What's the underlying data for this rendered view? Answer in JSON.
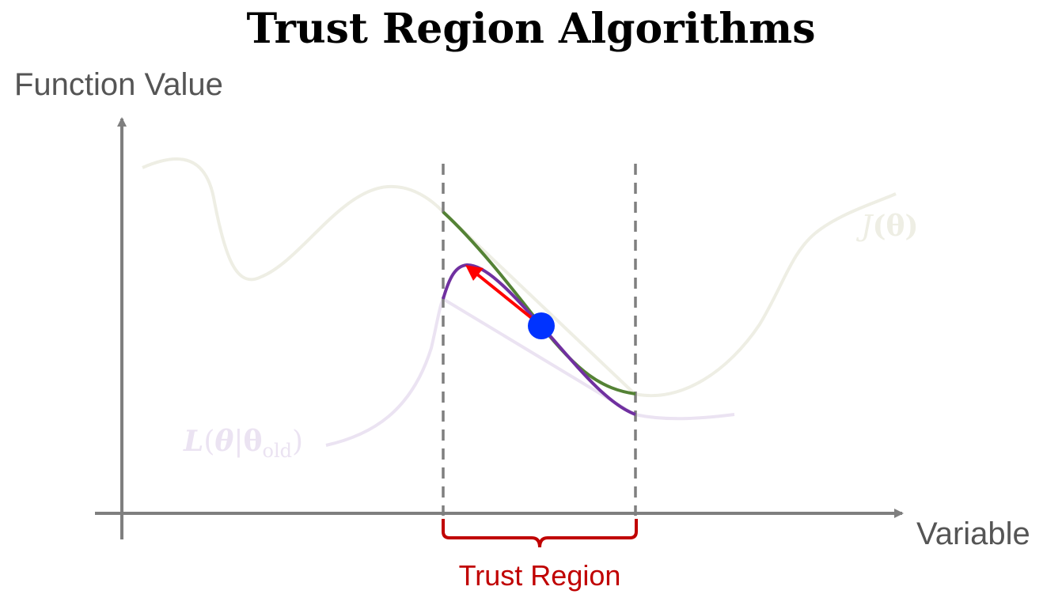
{
  "title": "Trust Region Algorithms",
  "axes": {
    "y_label": "Function Value",
    "x_label": "Variable"
  },
  "trust_region": {
    "label": "Trust Region"
  },
  "curves": {
    "objective": {
      "label_main": "J",
      "label_arg": "(θ)"
    },
    "surrogate": {
      "label_main": "L",
      "label_arg_open": "(",
      "label_theta": "θ",
      "label_bar": "|",
      "label_theta_old": "θ",
      "label_sub": "old",
      "label_close": ")"
    }
  },
  "colors": {
    "objective_faded": "#eeeee4",
    "surrogate_faded": "#ebe3f2",
    "objective_in_region": "#548235",
    "surrogate_in_region": "#7030a0",
    "step_arrow": "#ff0000",
    "current_point": "#0033ff",
    "region_brace": "#c00000",
    "axes": "#7f7f7f",
    "dashed_bounds": "#7f7f7f"
  }
}
